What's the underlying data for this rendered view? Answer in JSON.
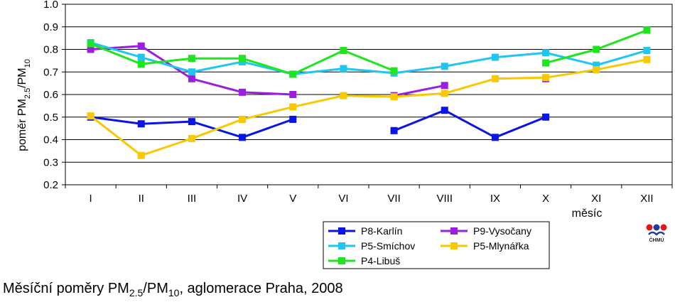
{
  "chart_data": {
    "type": "line",
    "categories": [
      "I",
      "II",
      "III",
      "IV",
      "V",
      "VI",
      "VII",
      "VIII",
      "IX",
      "X",
      "XI",
      "XII"
    ],
    "ylim": [
      0.2,
      1.0
    ],
    "yticks": [
      "1.0",
      "0.9",
      "0.8",
      "0.7",
      "0.6",
      "0.5",
      "0.4",
      "0.3",
      "0.2"
    ],
    "ylabel": {
      "text": "poměr PM",
      "sub1": "2.5",
      "mid": "/PM",
      "sub2": "10"
    },
    "xlabel": "měsíc",
    "grid": "horizontal",
    "legend_position": "bottom-right",
    "series": [
      {
        "name": "P8-Karlín",
        "color": "#0a14e6",
        "values": [
          0.5,
          0.47,
          0.48,
          0.41,
          0.49,
          null,
          0.44,
          0.53,
          0.41,
          0.5,
          null,
          null
        ]
      },
      {
        "name": "P9-Vysočany",
        "color": "#9a1ee0",
        "values": [
          0.8,
          0.815,
          0.67,
          0.61,
          0.6,
          null,
          0.595,
          0.64,
          null,
          0.67,
          null,
          null
        ]
      },
      {
        "name": "P5-Smíchov",
        "color": "#1ec6f0",
        "values": [
          0.83,
          0.765,
          0.7,
          0.745,
          0.69,
          0.715,
          0.695,
          0.725,
          0.765,
          0.785,
          0.73,
          0.795
        ]
      },
      {
        "name": "P5-Mlynářka",
        "color": "#f8c800",
        "values": [
          0.505,
          0.33,
          0.405,
          0.49,
          0.545,
          0.595,
          0.59,
          0.605,
          0.67,
          0.675,
          0.71,
          0.755
        ]
      },
      {
        "name": "P4-Libuš",
        "color": "#1ee61e",
        "values": [
          0.825,
          0.735,
          0.76,
          0.76,
          0.69,
          0.795,
          0.705,
          null,
          null,
          0.74,
          0.8,
          0.885
        ]
      }
    ]
  },
  "caption": {
    "pre": "Měsíční poměry  PM",
    "sub1": "2.5",
    "mid": "/PM",
    "sub2": "10",
    "post": ", aglomerace Praha, 2008"
  },
  "logo": {
    "text": "ČHMÚ"
  }
}
